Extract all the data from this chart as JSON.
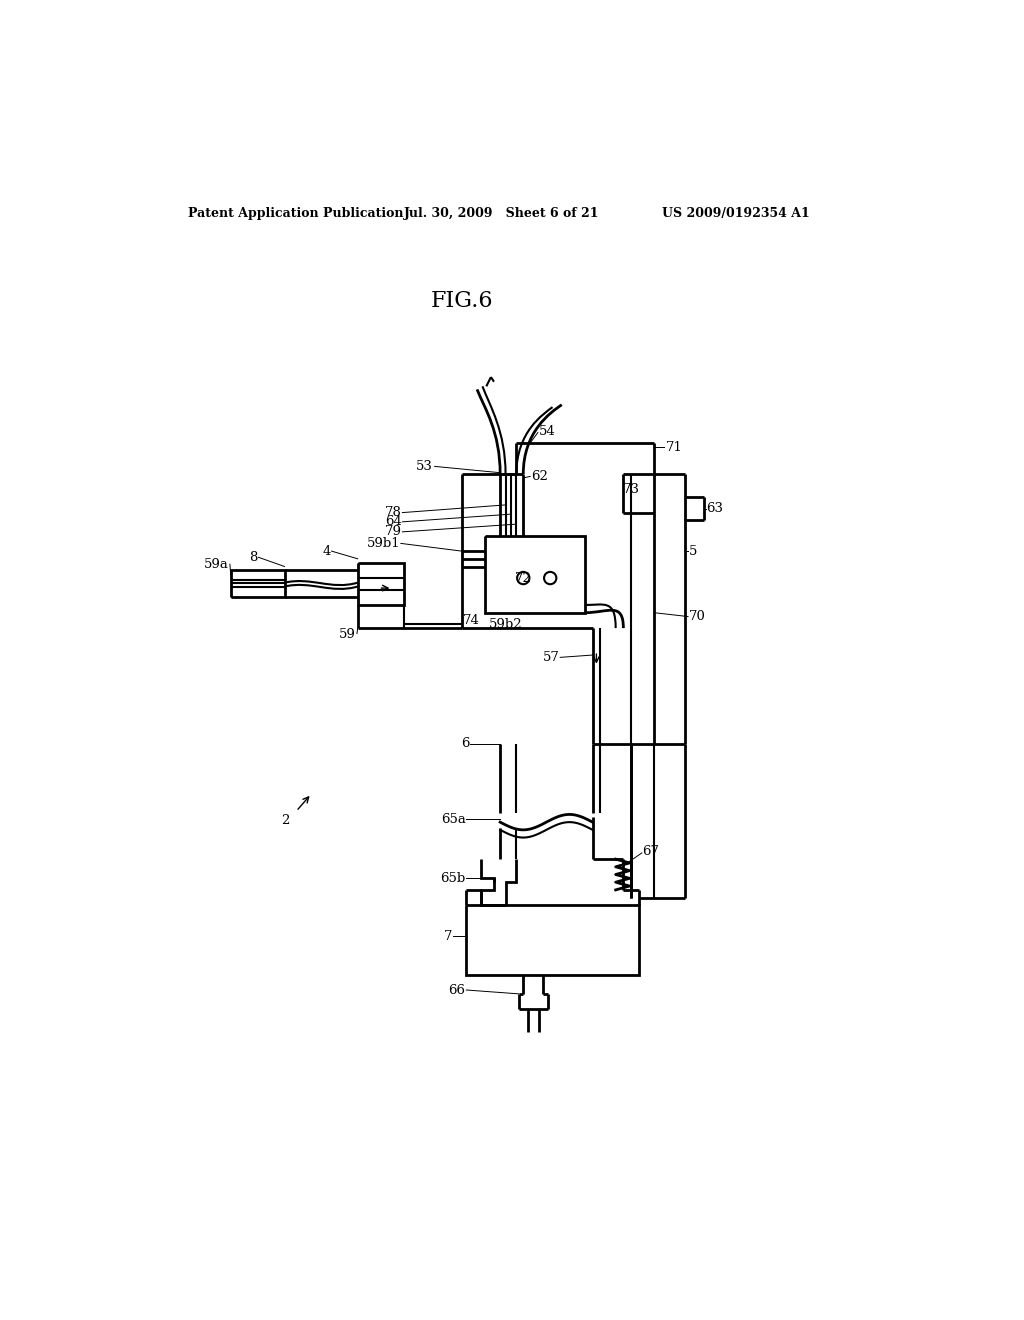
{
  "bg_color": "#ffffff",
  "line_color": "#000000",
  "header_left": "Patent Application Publication",
  "header_mid": "Jul. 30, 2009   Sheet 6 of 21",
  "header_right": "US 2009/0192354 A1",
  "fig_title": "FIG.6"
}
